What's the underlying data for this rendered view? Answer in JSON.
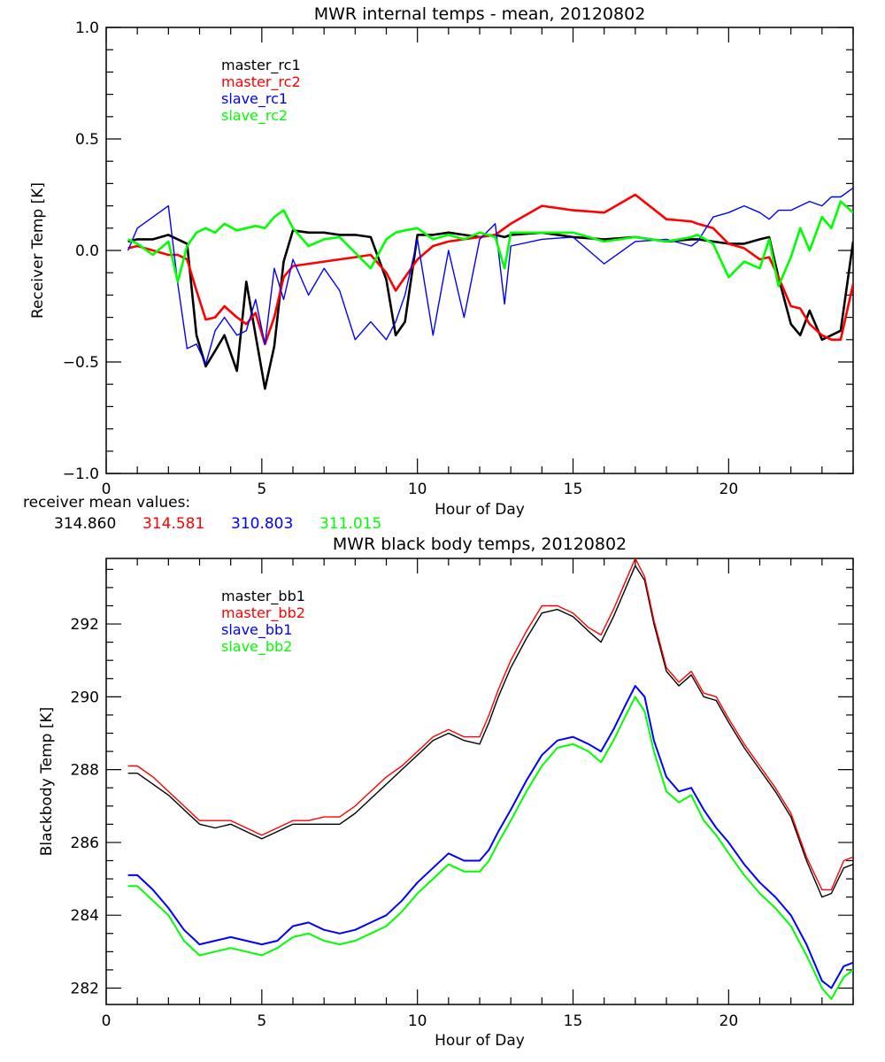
{
  "chart_data": [
    {
      "type": "line",
      "title": "MWR internal temps - mean, 20120802",
      "xlabel": "Hour of Day",
      "ylabel": "Receiver Temp [K]",
      "xlim": [
        0,
        24
      ],
      "ylim": [
        -1.0,
        1.0
      ],
      "xticks": [
        0,
        5,
        10,
        15,
        20
      ],
      "xtick_labels": [
        "0",
        "5",
        "10",
        "15",
        "20"
      ],
      "yticks": [
        -1.0,
        -0.5,
        0.0,
        0.5,
        1.0
      ],
      "ytick_labels": [
        "−1.0",
        "−0.5",
        "0.0",
        "0.5",
        "1.0"
      ],
      "grid": false,
      "legend_position": "top-left",
      "x": [
        0.7,
        1.0,
        1.5,
        2.0,
        2.3,
        2.6,
        2.9,
        3.2,
        3.5,
        3.8,
        4.2,
        4.5,
        4.8,
        5.1,
        5.4,
        5.7,
        6.0,
        6.5,
        7.0,
        7.5,
        8.0,
        8.5,
        9.0,
        9.3,
        9.6,
        10.0,
        10.5,
        11.0,
        11.5,
        12.0,
        12.5,
        12.8,
        13.0,
        14.0,
        15.0,
        16.0,
        17.0,
        18.0,
        18.8,
        19.0,
        19.5,
        20.0,
        20.5,
        21.0,
        21.3,
        21.6,
        22.0,
        22.3,
        22.6,
        23.0,
        23.3,
        23.6,
        24.0
      ],
      "series": [
        {
          "name": "master_rc1",
          "color": "#000000",
          "values": [
            0.04,
            0.05,
            0.05,
            0.07,
            0.05,
            0.03,
            -0.38,
            -0.52,
            -0.45,
            -0.38,
            -0.54,
            -0.14,
            -0.38,
            -0.62,
            -0.43,
            -0.05,
            0.09,
            0.08,
            0.08,
            0.07,
            0.07,
            0.06,
            -0.13,
            -0.38,
            -0.32,
            0.07,
            0.07,
            0.08,
            0.07,
            0.06,
            0.07,
            0.06,
            0.07,
            0.08,
            0.06,
            0.05,
            0.06,
            0.04,
            0.05,
            0.05,
            0.04,
            0.03,
            0.03,
            0.05,
            0.06,
            -0.12,
            -0.33,
            -0.38,
            -0.27,
            -0.4,
            -0.38,
            -0.36,
            0.04
          ]
        },
        {
          "name": "master_rc2",
          "color": "#ff0000",
          "values": [
            0.01,
            0.02,
            0.0,
            -0.02,
            -0.02,
            -0.04,
            -0.18,
            -0.31,
            -0.3,
            -0.25,
            -0.3,
            -0.33,
            -0.28,
            -0.42,
            -0.3,
            -0.12,
            -0.07,
            -0.06,
            -0.05,
            -0.04,
            -0.03,
            -0.02,
            -0.1,
            -0.18,
            -0.12,
            -0.04,
            0.02,
            0.04,
            0.05,
            0.06,
            0.07,
            0.1,
            0.12,
            0.2,
            0.18,
            0.17,
            0.25,
            0.14,
            0.13,
            0.12,
            0.1,
            0.03,
            0.01,
            -0.04,
            -0.03,
            -0.12,
            -0.25,
            -0.26,
            -0.33,
            -0.38,
            -0.4,
            -0.4,
            -0.15
          ]
        },
        {
          "name": "slave_rc1",
          "color": "#0000ff",
          "values": [
            0.0,
            0.1,
            0.15,
            0.2,
            -0.15,
            -0.44,
            -0.42,
            -0.51,
            -0.36,
            -0.3,
            -0.38,
            -0.36,
            -0.22,
            -0.42,
            -0.08,
            -0.22,
            -0.04,
            -0.2,
            -0.08,
            -0.18,
            -0.4,
            -0.32,
            -0.4,
            -0.32,
            -0.2,
            0.05,
            -0.38,
            0.0,
            -0.3,
            0.05,
            0.12,
            -0.24,
            0.02,
            0.05,
            0.06,
            -0.06,
            0.04,
            0.05,
            0.02,
            0.04,
            0.15,
            0.17,
            0.2,
            0.17,
            0.14,
            0.18,
            0.18,
            0.2,
            0.22,
            0.2,
            0.24,
            0.24,
            0.28
          ]
        },
        {
          "name": "slave_rc2",
          "color": "#00ff00",
          "values": [
            0.05,
            0.03,
            -0.02,
            0.04,
            -0.14,
            0.02,
            0.08,
            0.1,
            0.08,
            0.12,
            0.09,
            0.1,
            0.11,
            0.1,
            0.15,
            0.18,
            0.1,
            0.02,
            0.05,
            0.06,
            -0.01,
            -0.08,
            0.05,
            0.08,
            0.09,
            0.1,
            0.05,
            0.07,
            0.05,
            0.08,
            0.06,
            -0.08,
            0.08,
            0.08,
            0.08,
            0.04,
            0.06,
            0.04,
            0.06,
            0.07,
            0.03,
            -0.12,
            -0.05,
            -0.08,
            0.05,
            -0.16,
            -0.03,
            0.1,
            0.0,
            0.15,
            0.1,
            0.22,
            0.17
          ]
        }
      ],
      "annotation_label": "receiver mean values:",
      "annotation_values": [
        {
          "value": "314.860",
          "color": "#000000"
        },
        {
          "value": "314.581",
          "color": "#ff0000"
        },
        {
          "value": "310.803",
          "color": "#0000ff"
        },
        {
          "value": "311.015",
          "color": "#00ff00"
        }
      ]
    },
    {
      "type": "line",
      "title": "MWR black body temps, 20120802",
      "xlabel": "Hour of Day",
      "ylabel": "Blackbody Temp [K]",
      "xlim": [
        0,
        24
      ],
      "ylim": [
        281.55,
        293.8
      ],
      "xticks": [
        0,
        5,
        10,
        15,
        20
      ],
      "xtick_labels": [
        "0",
        "5",
        "10",
        "15",
        "20"
      ],
      "yticks": [
        282,
        284,
        286,
        288,
        290,
        292
      ],
      "ytick_labels": [
        "282",
        "284",
        "286",
        "288",
        "290",
        "292"
      ],
      "grid": false,
      "legend_position": "top-left",
      "x": [
        0.7,
        1.0,
        1.5,
        2.0,
        2.5,
        3.0,
        3.5,
        4.0,
        4.5,
        5.0,
        5.5,
        6.0,
        6.5,
        7.0,
        7.5,
        8.0,
        8.5,
        9.0,
        9.5,
        10.0,
        10.5,
        11.0,
        11.5,
        12.0,
        12.3,
        12.6,
        13.0,
        13.5,
        14.0,
        14.5,
        15.0,
        15.5,
        15.9,
        16.3,
        16.7,
        17.0,
        17.3,
        17.6,
        18.0,
        18.4,
        18.8,
        19.2,
        19.6,
        20.0,
        20.5,
        21.0,
        21.5,
        22.0,
        22.5,
        23.0,
        23.3,
        23.7,
        24.0
      ],
      "series": [
        {
          "name": "master_bb1",
          "color": "#000000",
          "values": [
            287.9,
            287.9,
            287.6,
            287.3,
            286.9,
            286.5,
            286.4,
            286.5,
            286.3,
            286.1,
            286.3,
            286.5,
            286.5,
            286.5,
            286.5,
            286.8,
            287.2,
            287.6,
            288.0,
            288.4,
            288.8,
            289.0,
            288.8,
            288.7,
            289.3,
            290.0,
            290.8,
            291.6,
            292.3,
            292.4,
            292.2,
            291.8,
            291.5,
            292.2,
            293.0,
            293.6,
            293.2,
            292.0,
            290.7,
            290.3,
            290.6,
            290.0,
            289.9,
            289.3,
            288.6,
            288.0,
            287.4,
            286.7,
            285.5,
            284.5,
            284.6,
            285.3,
            285.4
          ]
        },
        {
          "name": "master_bb2",
          "color": "#ff0000",
          "values": [
            288.1,
            288.1,
            287.8,
            287.4,
            287.0,
            286.6,
            286.6,
            286.6,
            286.4,
            286.2,
            286.4,
            286.6,
            286.6,
            286.7,
            286.7,
            287.0,
            287.4,
            287.8,
            288.1,
            288.5,
            288.9,
            289.1,
            288.9,
            288.9,
            289.5,
            290.2,
            291.0,
            291.8,
            292.5,
            292.5,
            292.3,
            291.9,
            291.7,
            292.4,
            293.2,
            293.8,
            293.3,
            292.1,
            290.8,
            290.4,
            290.7,
            290.1,
            290.0,
            289.4,
            288.7,
            288.1,
            287.5,
            286.8,
            285.6,
            284.7,
            284.7,
            285.5,
            285.6
          ]
        },
        {
          "name": "slave_bb1",
          "color": "#0000ff",
          "values": [
            285.1,
            285.1,
            284.7,
            284.2,
            283.6,
            283.2,
            283.3,
            283.4,
            283.3,
            283.2,
            283.3,
            283.7,
            283.8,
            283.6,
            283.5,
            283.6,
            283.8,
            284.0,
            284.4,
            284.9,
            285.3,
            285.7,
            285.5,
            285.5,
            285.8,
            286.3,
            286.9,
            287.7,
            288.4,
            288.8,
            288.9,
            288.7,
            288.5,
            289.1,
            289.8,
            290.3,
            290.0,
            288.8,
            287.8,
            287.4,
            287.5,
            286.9,
            286.4,
            286.0,
            285.4,
            284.9,
            284.5,
            284.0,
            283.2,
            282.2,
            282.0,
            282.6,
            282.7
          ]
        },
        {
          "name": "slave_bb2",
          "color": "#00ff00",
          "values": [
            284.8,
            284.8,
            284.4,
            284.0,
            283.3,
            282.9,
            283.0,
            283.1,
            283.0,
            282.9,
            283.1,
            283.4,
            283.5,
            283.3,
            283.2,
            283.3,
            283.5,
            283.7,
            284.1,
            284.6,
            285.0,
            285.4,
            285.2,
            285.2,
            285.5,
            286.0,
            286.6,
            287.4,
            288.1,
            288.6,
            288.7,
            288.5,
            288.2,
            288.8,
            289.5,
            290.0,
            289.6,
            288.5,
            287.4,
            287.1,
            287.3,
            286.6,
            286.2,
            285.7,
            285.1,
            284.6,
            284.2,
            283.7,
            282.9,
            282.0,
            281.7,
            282.3,
            282.5
          ]
        }
      ]
    }
  ]
}
